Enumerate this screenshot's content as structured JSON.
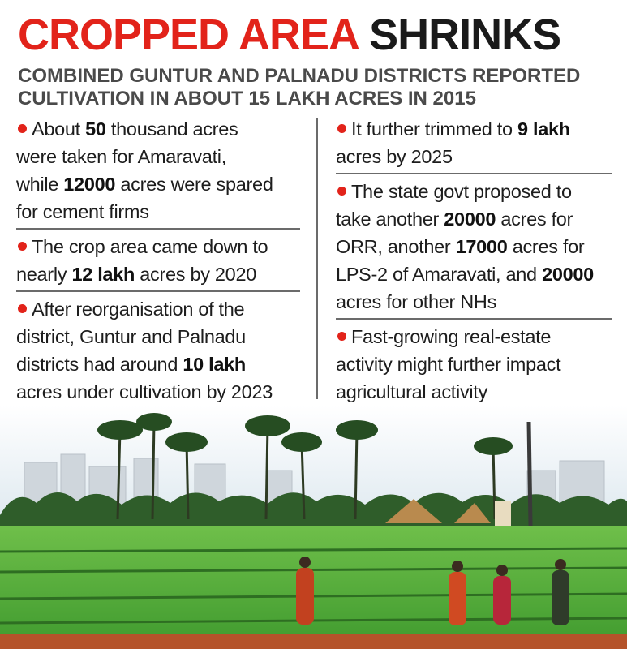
{
  "headline": {
    "part1": "CROPPED AREA",
    "part2": "SHRINKS"
  },
  "subhead": {
    "line1": "COMBINED GUNTUR AND PALNADU DISTRICTS REPORTED",
    "line2": "CULTIVATION IN ABOUT 15 LAKH ACRES IN 2015"
  },
  "left_column": [
    {
      "lines": [
        [
          "About ",
          {
            "b": "50"
          },
          " thousand acres"
        ],
        [
          "were taken for Amaravati,"
        ],
        [
          "while ",
          {
            "b": "12000"
          },
          " acres were spared"
        ],
        [
          "for cement firms"
        ]
      ]
    },
    {
      "lines": [
        [
          "The crop area came down to"
        ],
        [
          "nearly ",
          {
            "b": "12 lakh"
          },
          " acres by 2020"
        ]
      ]
    },
    {
      "lines": [
        [
          "After reorganisation of the"
        ],
        [
          "district, Guntur and Palnadu"
        ],
        [
          "districts had around ",
          {
            "b": "10 lakh"
          }
        ],
        [
          "acres under cultivation by 2023"
        ]
      ]
    }
  ],
  "right_column": [
    {
      "lines": [
        [
          "It further trimmed to ",
          {
            "b": "9 lakh"
          }
        ],
        [
          "acres by 2025"
        ]
      ]
    },
    {
      "lines": [
        [
          "The state govt proposed to"
        ],
        [
          "take another ",
          {
            "b": "20000"
          },
          " acres for"
        ],
        [
          "ORR, another ",
          {
            "b": "17000"
          },
          " acres for"
        ],
        [
          "LPS-2 of Amaravati, and ",
          {
            "b": "20000"
          }
        ],
        [
          "acres for other NHs"
        ]
      ]
    },
    {
      "lines": [
        [
          "Fast-growing real-estate"
        ],
        [
          "activity might further impact"
        ],
        [
          "agricultural activity"
        ]
      ]
    }
  ],
  "colors": {
    "accent_red": "#e2231a",
    "headline_black": "#1a1a1a",
    "subhead_gray": "#4a4a4a",
    "field_green": "#4caf3a",
    "sky": "#e8f0f5"
  }
}
